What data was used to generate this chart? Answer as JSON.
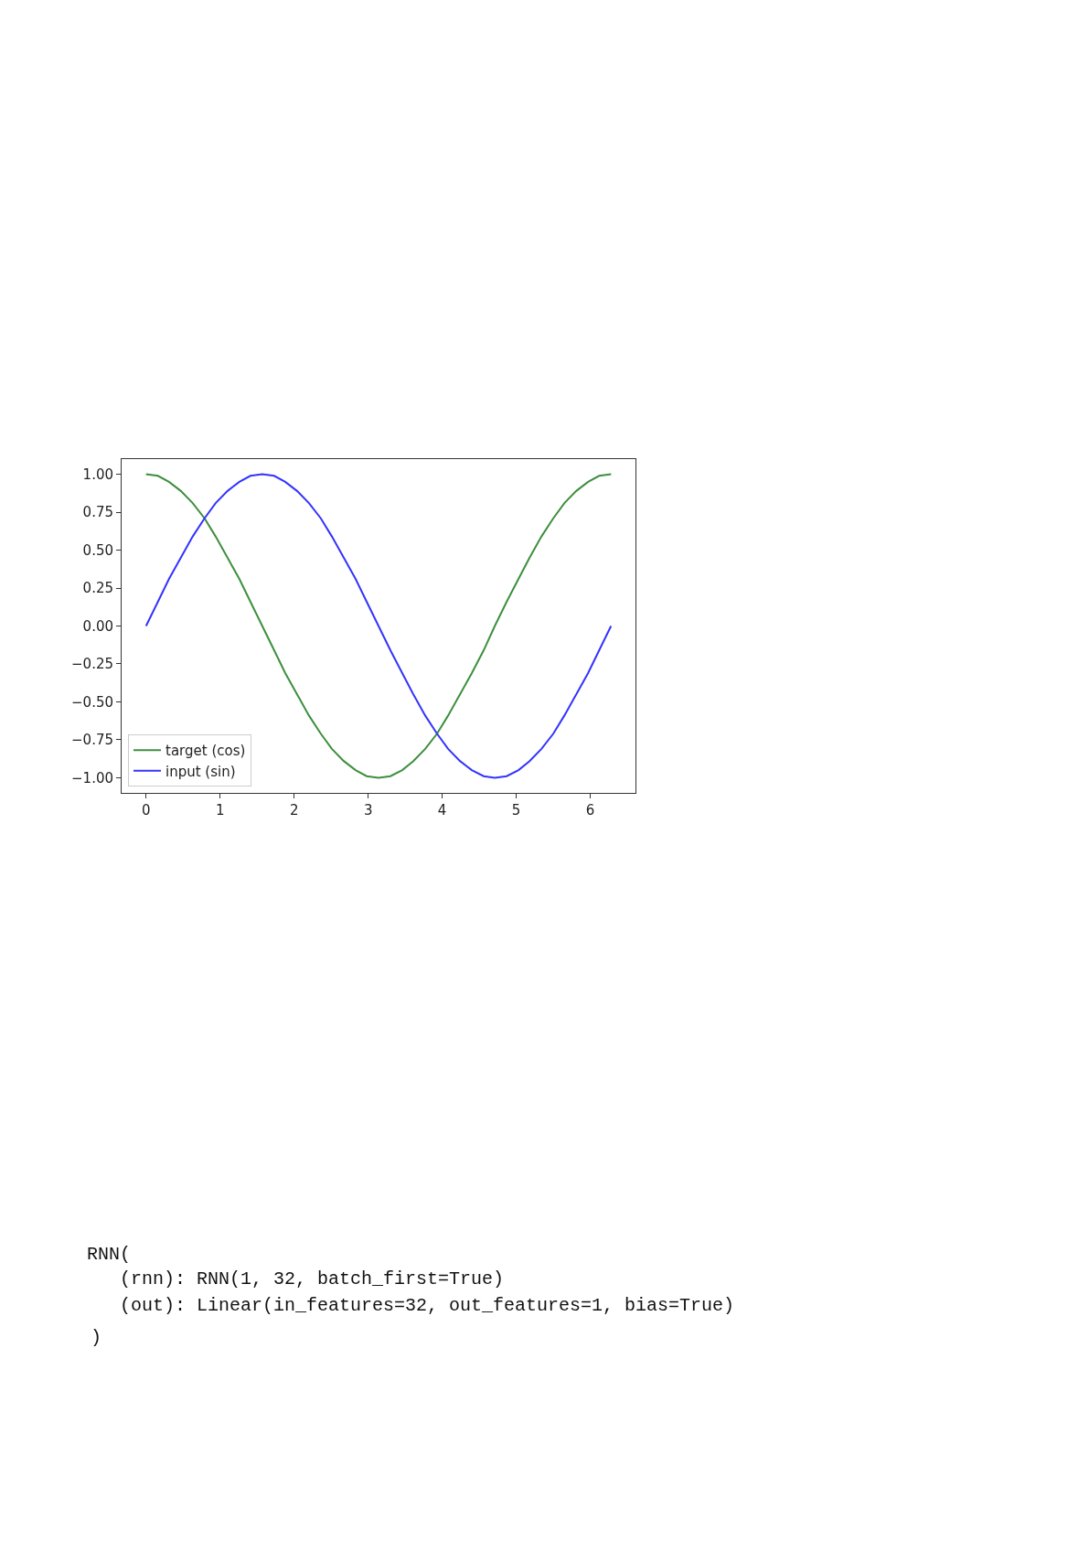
{
  "chart_data": {
    "type": "line",
    "x": [
      0,
      0.16,
      0.31,
      0.47,
      0.63,
      0.79,
      0.94,
      1.1,
      1.26,
      1.41,
      1.57,
      1.73,
      1.88,
      2.04,
      2.2,
      2.36,
      2.51,
      2.67,
      2.83,
      2.98,
      3.14,
      3.3,
      3.46,
      3.61,
      3.77,
      3.93,
      4.08,
      4.24,
      4.4,
      4.56,
      4.71,
      4.87,
      5.03,
      5.18,
      5.34,
      5.5,
      5.65,
      5.81,
      5.97,
      6.12,
      6.28
    ],
    "series": [
      {
        "name": "target (cos)",
        "color": "#3d8f3d",
        "values": [
          1,
          0.99,
          0.95,
          0.89,
          0.81,
          0.71,
          0.59,
          0.45,
          0.31,
          0.16,
          0,
          -0.16,
          -0.31,
          -0.45,
          -0.59,
          -0.71,
          -0.81,
          -0.89,
          -0.95,
          -0.99,
          -1,
          -0.99,
          -0.95,
          -0.89,
          -0.81,
          -0.71,
          -0.59,
          -0.45,
          -0.31,
          -0.16,
          0,
          0.16,
          0.31,
          0.45,
          0.59,
          0.71,
          0.81,
          0.89,
          0.95,
          0.99,
          1
        ]
      },
      {
        "name": "input (sin)",
        "color": "#3333ff",
        "values": [
          0,
          0.16,
          0.31,
          0.45,
          0.59,
          0.71,
          0.81,
          0.89,
          0.95,
          0.99,
          1,
          0.99,
          0.95,
          0.89,
          0.81,
          0.71,
          0.59,
          0.45,
          0.31,
          0.16,
          0,
          -0.16,
          -0.31,
          -0.45,
          -0.59,
          -0.71,
          -0.81,
          -0.89,
          -0.95,
          -0.99,
          -1,
          -0.99,
          -0.95,
          -0.89,
          -0.81,
          -0.71,
          -0.59,
          -0.45,
          -0.31,
          -0.16,
          0
        ]
      }
    ],
    "xlim": [
      -0.33,
      6.61
    ],
    "ylim": [
      -1.1,
      1.1
    ],
    "xticks": [
      0,
      1,
      2,
      3,
      4,
      5,
      6
    ],
    "yticks": [
      {
        "value": 1,
        "label": "1.00"
      },
      {
        "value": 0.75,
        "label": "0.75"
      },
      {
        "value": 0.5,
        "label": "0.50"
      },
      {
        "value": 0.25,
        "label": "0.25"
      },
      {
        "value": 0,
        "label": "0.00"
      },
      {
        "value": -0.25,
        "label": "−0.25"
      },
      {
        "value": -0.5,
        "label": "−0.50"
      },
      {
        "value": -0.75,
        "label": "−0.75"
      },
      {
        "value": -1,
        "label": "−1.00"
      }
    ],
    "legend": "bottom left",
    "line_style": "solid",
    "marker": "none",
    "annotations": [
      "RNN(",
      "(rnn): RNN(1, 32, batch_first=True)",
      "(out): Linear(in_features=32, out_features=1, bias=True)",
      ")"
    ]
  }
}
